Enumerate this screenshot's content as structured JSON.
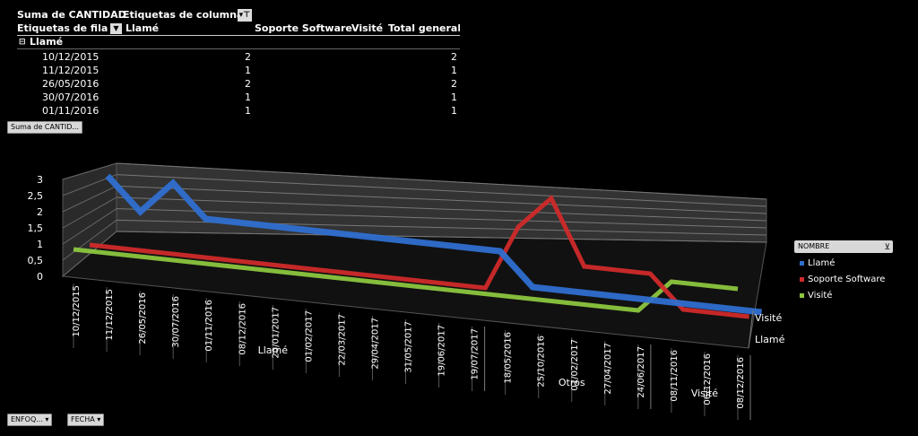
{
  "pivot": {
    "value_field": "Suma de CANTIDAD",
    "column_labels": "Etiquetas de columna",
    "row_labels": "Etiquetas de fila",
    "columns": [
      "Llamé",
      "Soporte Software",
      "Visité",
      "Total general"
    ],
    "group": "Llamé",
    "group_toggle": "⊟",
    "rows": [
      {
        "date": "10/12/2015",
        "llame": "2",
        "total": "2"
      },
      {
        "date": "11/12/2015",
        "llame": "1",
        "total": "1"
      },
      {
        "date": "26/05/2016",
        "llame": "2",
        "total": "2"
      },
      {
        "date": "30/07/2016",
        "llame": "1",
        "total": "1"
      },
      {
        "date": "01/11/2016",
        "llame": "1",
        "total": "1"
      }
    ]
  },
  "chart_button": "Suma de CANTID...",
  "bottom_buttons": {
    "enfoque": "ENFOQ...",
    "fecha": "FECHA"
  },
  "legend": {
    "title": "NOMBRE",
    "filter_icon": "filter-icon"
  },
  "colors": {
    "Llamé": "#2f6fd0",
    "Soporte Software": "#d02a2a",
    "Visité": "#8cc63f"
  },
  "chart_data": {
    "type": "line",
    "three_d": true,
    "ylim": [
      0,
      3
    ],
    "yticks": [
      "0",
      "0,5",
      "1",
      "1,5",
      "2",
      "2,5",
      "3"
    ],
    "depth_labels": [
      "Llamé",
      "Visité"
    ],
    "groups": [
      {
        "name": "Llamé",
        "start": 0,
        "end": 12
      },
      {
        "name": "Otros",
        "start": 13,
        "end": 17
      },
      {
        "name": "Visité",
        "start": 18,
        "end": 20
      }
    ],
    "categories": [
      "10/12/2015",
      "11/12/2015",
      "26/05/2016",
      "30/07/2016",
      "01/11/2016",
      "08/12/2016",
      "20/01/2017",
      "01/02/2017",
      "22/03/2017",
      "29/04/2017",
      "31/05/2017",
      "19/06/2017",
      "19/07/2017",
      "18/05/2016",
      "25/10/2016",
      "01/02/2017",
      "27/04/2017",
      "24/06/2017",
      "08/11/2016",
      "06/12/2016",
      "08/12/2016"
    ],
    "series": [
      {
        "name": "Llamé",
        "values": [
          2,
          1,
          2,
          1,
          1,
          1,
          1,
          1,
          1,
          1,
          1,
          1,
          1,
          0,
          0,
          0,
          0,
          0,
          0,
          0,
          0
        ]
      },
      {
        "name": "Soporte Software",
        "values": [
          0,
          0,
          0,
          0,
          0,
          0,
          0,
          0,
          0,
          0,
          0,
          0,
          0,
          2,
          3,
          1,
          1,
          1,
          0,
          0,
          0
        ]
      },
      {
        "name": "Visité",
        "values": [
          0,
          0,
          0,
          0,
          0,
          0,
          0,
          0,
          0,
          0,
          0,
          0,
          0,
          0,
          0,
          0,
          0,
          0,
          1,
          1,
          1
        ]
      }
    ],
    "grid": true,
    "legend_position": "right"
  }
}
